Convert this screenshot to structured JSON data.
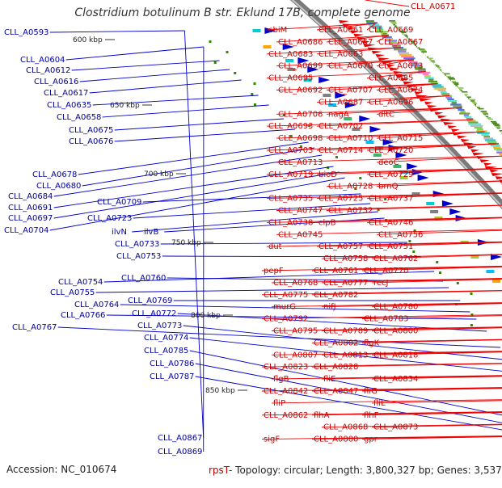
{
  "title": "Clostridium botulinum B str. Eklund 17B, complete genome",
  "footer": {
    "accession": "Accession: NC_010674",
    "last_gene": "rpsT",
    "summary": "- Topology: circular; Length: 3,800,327 bp; Genes: 3,537"
  },
  "colors": {
    "forward": "#0000cc",
    "reverse": "#ee0000",
    "backbone": "#888888",
    "gc": "#2e8b00"
  },
  "scale_ticks": [
    "600 kbp",
    "650 kbp",
    "700 kbp",
    "750 kbp",
    "800 kbp",
    "850 kbp"
  ],
  "left_labels": [
    "CLL_A0593",
    "CLL_A0604",
    "CLL_A0612",
    "CLL_A0616",
    "CLL_A0617",
    "CLL_A0635",
    "CLL_A0658",
    "CLL_A0675",
    "CLL_A0676",
    "CLL_A0678",
    "CLL_A0680",
    "CLL_A0684",
    "CLL_A0691",
    "CLL_A0697",
    "CLL_A0704",
    "CLL_A0709",
    "CLL_A0723",
    "ilvN",
    "ilvB",
    "CLL_A0733",
    "CLL_A0753",
    "CLL_A0754",
    "CLL_A0760",
    "CLL_A0755",
    "CLL_A0769",
    "CLL_A0764",
    "CLL_A0766",
    "CLL_A0772",
    "CLL_A0767",
    "CLL_A0773",
    "CLL_A0774",
    "CLL_A0785",
    "CLL_A0786",
    "CLL_A0787",
    "CLL_A0867",
    "CLL_A0869"
  ],
  "right_labels": [
    "CLL_A0671",
    "cbiM",
    "CLL_A0661",
    "CLL_A0669",
    "CLL_A0686",
    "CLL_A0657",
    "CLL_A0667",
    "CLL_A0683",
    "CLL_A0663",
    "CLL_A0673",
    "CLL_A0699",
    "CLL_A0670",
    "CLL_A0685",
    "CLL_A0695",
    "CLL_A0707",
    "CLL_A0674",
    "CLL_A0692",
    "CLL_A0687",
    "CLL_A0696",
    "CLL_A0706",
    "nagA",
    "dltC",
    "CLL_A0693",
    "CLL_A0702",
    "CLL_A0715",
    "CLL_A0698",
    "CLL_A0710",
    "CLL_A0720",
    "CLL_A0703",
    "CLL_A0714",
    "deoC",
    "CLL_A0713",
    "bioD",
    "CLL_A0729",
    "CLL_A0719",
    "CLL_A0728",
    "brnQ",
    "CLL_A0735",
    "CLL_A0725",
    "CLL_A0737",
    "CLL_A0747",
    "CLL_A0732",
    "CLL_A0746",
    "CLL_A0738",
    "clpB",
    "CLL_A0756",
    "CLL_A0745",
    "CLL_A0757",
    "CLL_A0751",
    "dut",
    "CLL_A0758",
    "CLL_A0762",
    "pepF",
    "CLL_A0761",
    "CLL_A0770",
    "CLL_A0768",
    "CLL_A0777",
    "recJ",
    "CLL_A0775",
    "CLL_A0782",
    "CLL_A0780",
    "murG",
    "nifJ",
    "CLL_A0783",
    "CLL_A0792",
    "CLL_A0789",
    "CLL_A0800",
    "CLL_A0795",
    "CLL_A0802",
    "flgK",
    "CLL_A0807",
    "CLL_A0813",
    "CLL_A0818",
    "CLL_A0823",
    "CLL_A0828",
    "CLL_A0834",
    "flgB",
    "fliE",
    "fliG",
    "CLL_A0842",
    "CLL_A0847",
    "fliL",
    "fliP",
    "flhA",
    "flhF",
    "CLL_A0862",
    "CLL_A0868",
    "CLL_A0873",
    "sigF",
    "CLL_A0880",
    "gpr"
  ]
}
